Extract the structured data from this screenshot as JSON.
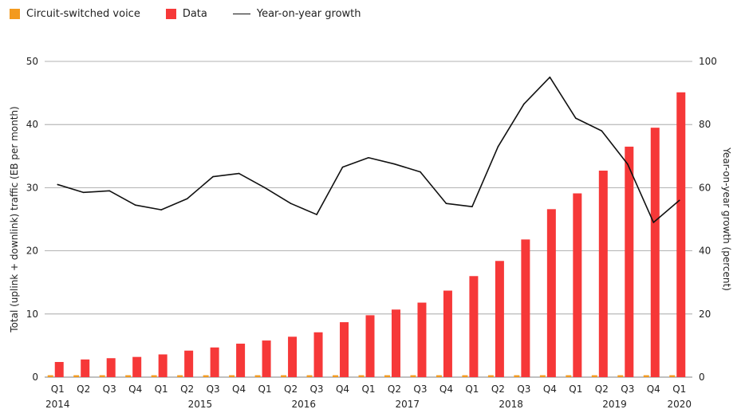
{
  "legend": {
    "voice_label": "Circuit-switched voice",
    "data_label": "Data",
    "growth_label": "Year-on-year growth"
  },
  "colors": {
    "voice": "#f39a1e",
    "data": "#f63838",
    "growth_line": "#111111",
    "grid": "#9a9a9a"
  },
  "chart_data": {
    "type": "bar",
    "categories": [
      "Q1",
      "Q2",
      "Q3",
      "Q4",
      "Q1",
      "Q2",
      "Q3",
      "Q4",
      "Q1",
      "Q2",
      "Q3",
      "Q4",
      "Q1",
      "Q2",
      "Q3",
      "Q4",
      "Q1",
      "Q2",
      "Q3",
      "Q4",
      "Q1",
      "Q2",
      "Q3",
      "Q4",
      "Q1"
    ],
    "years": [
      {
        "label": "2014",
        "start": 0,
        "end": 3
      },
      {
        "label": "2015",
        "start": 4,
        "end": 7
      },
      {
        "label": "2016",
        "start": 8,
        "end": 11
      },
      {
        "label": "2017",
        "start": 12,
        "end": 15
      },
      {
        "label": "2018",
        "start": 16,
        "end": 19
      },
      {
        "label": "2019",
        "start": 20,
        "end": 23
      },
      {
        "label": "2020",
        "start": 24,
        "end": 24
      }
    ],
    "series": [
      {
        "name": "Circuit-switched voice",
        "axis": "left",
        "kind": "bar",
        "values": [
          0.3,
          0.3,
          0.3,
          0.3,
          0.3,
          0.3,
          0.3,
          0.3,
          0.3,
          0.3,
          0.3,
          0.3,
          0.3,
          0.3,
          0.3,
          0.3,
          0.3,
          0.3,
          0.3,
          0.3,
          0.3,
          0.3,
          0.3,
          0.3,
          0.3
        ]
      },
      {
        "name": "Data",
        "axis": "left",
        "kind": "bar",
        "values": [
          2.4,
          2.8,
          3.0,
          3.2,
          3.6,
          4.2,
          4.7,
          5.3,
          5.8,
          6.4,
          7.1,
          8.7,
          9.8,
          10.7,
          11.8,
          13.7,
          16.0,
          18.4,
          21.8,
          26.6,
          29.1,
          32.7,
          36.5,
          39.5,
          45.1
        ]
      },
      {
        "name": "Year-on-year growth",
        "axis": "right",
        "kind": "line",
        "values": [
          61,
          58.5,
          59,
          54.5,
          53,
          56.5,
          63.5,
          64.5,
          60,
          55,
          51.5,
          66.5,
          69.5,
          67.5,
          65,
          55,
          54,
          73,
          86.5,
          95,
          82,
          78,
          67.5,
          49,
          56
        ]
      }
    ],
    "ylabel": "Total (uplink + downlink) traffic (EB per month)",
    "y2label": "Year-on-year growth (percent)",
    "ylim": [
      0,
      50
    ],
    "yticks": [
      0,
      10,
      20,
      30,
      40,
      50
    ],
    "y2lim": [
      0,
      100
    ],
    "y2ticks": [
      0,
      20,
      40,
      60,
      80,
      100
    ],
    "grid": true,
    "legend_position": "top-left"
  }
}
